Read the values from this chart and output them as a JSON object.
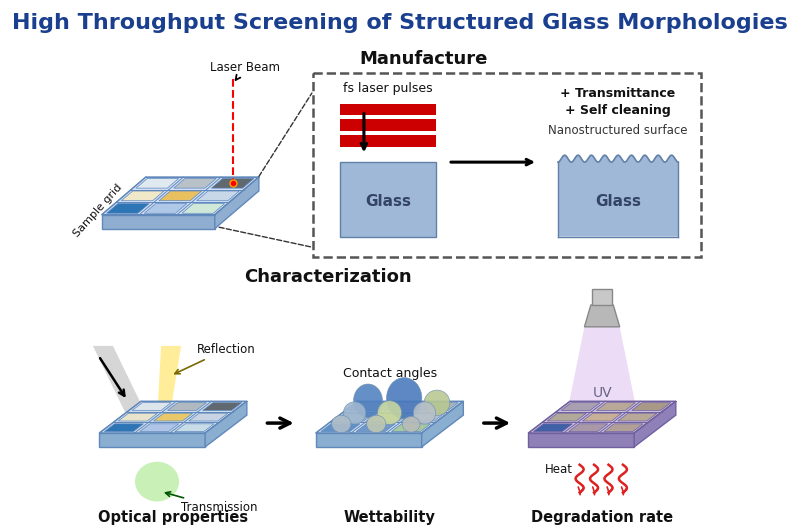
{
  "title": "High Throughput Screening of Structured Glass Morphologies",
  "title_color": "#1a3f8f",
  "title_fontsize": 16,
  "manufacture_label": "Manufacture",
  "characterization_label": "Characterization",
  "fs_laser_label": "fs laser pulses",
  "glass_label": "Glass",
  "transmittance_label": "+ Transmittance",
  "selfcleaning_label": "+ Self cleaning",
  "nanostructured_label": "Nanostructured surface",
  "laser_beam_label": "Laser Beam",
  "sample_grid_label": "Sample grid",
  "reflection_label": "Reflection",
  "transmission_label": "Transmission",
  "contact_angles_label": "Contact angles",
  "uv_label": "UV",
  "heat_label": "Heat",
  "optical_label": "Optical properties",
  "wettability_label": "Wettability",
  "degradation_label": "Degradation rate",
  "red_stripe": "#cc0000",
  "bg_color": "#ffffff"
}
